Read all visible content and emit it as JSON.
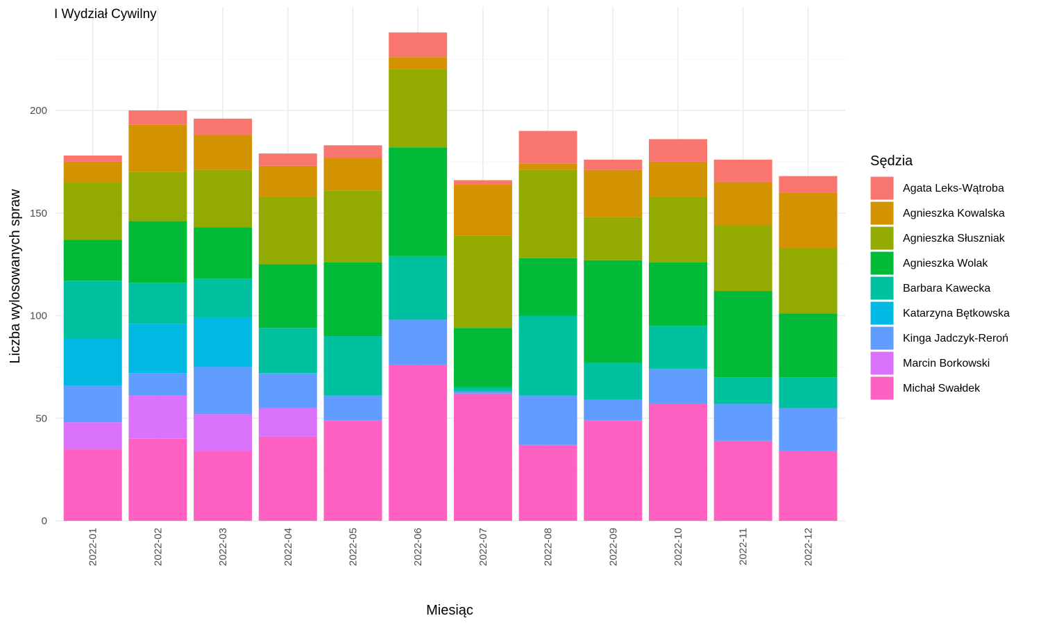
{
  "chart_data": {
    "type": "bar",
    "stacked": true,
    "title": "I Wydział Cywilny",
    "xlabel": "Miesiąc",
    "ylabel": "Liczba wylosowanych spraw",
    "ylim": [
      0,
      240
    ],
    "yticks": [
      0,
      50,
      100,
      150,
      200
    ],
    "grid": true,
    "legend": {
      "title": "Sędzia",
      "placement": "right"
    },
    "categories": [
      "2022-01",
      "2022-02",
      "2022-03",
      "2022-04",
      "2022-05",
      "2022-06",
      "2022-07",
      "2022-08",
      "2022-09",
      "2022-10",
      "2022-11",
      "2022-12"
    ],
    "series": [
      {
        "name": "Agata Leks-Wątroba",
        "color": "#F8766D",
        "values": [
          3,
          7,
          8,
          6,
          6,
          12,
          2,
          16,
          5,
          11,
          11,
          8
        ]
      },
      {
        "name": "Agnieszka Kowalska",
        "color": "#D39200",
        "values": [
          10,
          23,
          17,
          15,
          16,
          6,
          25,
          3,
          23,
          17,
          21,
          27
        ]
      },
      {
        "name": "Agnieszka Słuszniak",
        "color": "#93AA00",
        "values": [
          28,
          24,
          28,
          33,
          35,
          38,
          45,
          43,
          21,
          32,
          32,
          32
        ]
      },
      {
        "name": "Agnieszka Wolak",
        "color": "#00BA38",
        "values": [
          20,
          30,
          25,
          31,
          36,
          53,
          29,
          28,
          50,
          31,
          42,
          31
        ]
      },
      {
        "name": "Barbara Kawecka",
        "color": "#00C19F",
        "values": [
          28,
          20,
          19,
          22,
          29,
          31,
          2,
          39,
          18,
          21,
          13,
          15
        ]
      },
      {
        "name": "Katarzyna Bętkowska",
        "color": "#00B9E3",
        "values": [
          23,
          24,
          24,
          0,
          0,
          0,
          0,
          0,
          0,
          0,
          0,
          0
        ]
      },
      {
        "name": "Kinga Jadczyk-Reroń",
        "color": "#619CFF",
        "values": [
          18,
          11,
          23,
          17,
          12,
          22,
          1,
          24,
          10,
          17,
          18,
          21
        ]
      },
      {
        "name": "Marcin Borkowski",
        "color": "#DB72FB",
        "values": [
          13,
          21,
          18,
          14,
          0,
          0,
          0,
          0,
          0,
          0,
          0,
          0
        ]
      },
      {
        "name": "Michał Swałdek",
        "color": "#FF61C3",
        "values": [
          35,
          40,
          34,
          41,
          49,
          76,
          62,
          37,
          49,
          57,
          39,
          34
        ]
      }
    ]
  }
}
